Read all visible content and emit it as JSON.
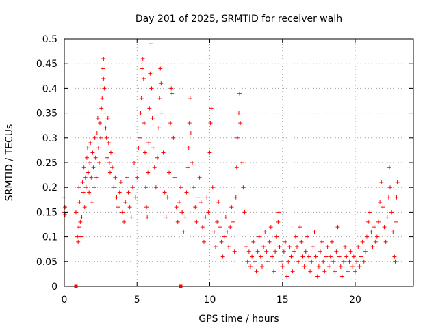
{
  "chart_data": {
    "type": "scatter",
    "title": "Day 201 of 2025, SRMTID for receiver walh",
    "xlabel": "GPS time / hours",
    "ylabel": "SRMTID / TECUs",
    "xlim": [
      0,
      24
    ],
    "ylim": [
      0,
      0.5
    ],
    "grid": true,
    "marker": "+",
    "marker_color": "#ff0000",
    "x_ticks": [
      0,
      5,
      10,
      15,
      20
    ],
    "x_tick_labels": [
      "0",
      "5",
      "10",
      "15",
      "20"
    ],
    "y_ticks": [
      0,
      0.05,
      0.1,
      0.15,
      0.2,
      0.25,
      0.3,
      0.35,
      0.4,
      0.45,
      0.5
    ],
    "y_tick_labels": [
      "0",
      "0.05",
      "0.1",
      "0.15",
      "0.2",
      "0.25",
      "0.3",
      "0.35",
      "0.4",
      "0.45",
      "0.5"
    ],
    "zero_markers": [
      0.8,
      8.0
    ],
    "series": [
      {
        "name": "SRMTID",
        "color": "#ff0000",
        "points": [
          [
            0.0,
            0.18
          ],
          [
            0.0,
            0.15
          ],
          [
            0.05,
            0.145
          ],
          [
            0.05,
            0.16
          ],
          [
            0.8,
            0.15
          ],
          [
            0.9,
            0.1
          ],
          [
            0.95,
            0.09
          ],
          [
            1.0,
            0.12
          ],
          [
            1.0,
            0.2
          ],
          [
            1.05,
            0.17
          ],
          [
            1.1,
            0.13
          ],
          [
            1.15,
            0.1
          ],
          [
            1.2,
            0.14
          ],
          [
            1.25,
            0.21
          ],
          [
            1.3,
            0.19
          ],
          [
            1.35,
            0.24
          ],
          [
            1.4,
            0.16
          ],
          [
            1.45,
            0.22
          ],
          [
            1.5,
            0.2
          ],
          [
            1.55,
            0.26
          ],
          [
            1.6,
            0.28
          ],
          [
            1.65,
            0.23
          ],
          [
            1.7,
            0.19
          ],
          [
            1.75,
            0.25
          ],
          [
            1.8,
            0.29
          ],
          [
            1.85,
            0.22
          ],
          [
            1.9,
            0.17
          ],
          [
            1.95,
            0.27
          ],
          [
            2.0,
            0.24
          ],
          [
            2.05,
            0.2
          ],
          [
            2.1,
            0.3
          ],
          [
            2.15,
            0.26
          ],
          [
            2.2,
            0.22
          ],
          [
            2.25,
            0.31
          ],
          [
            2.3,
            0.34
          ],
          [
            2.35,
            0.28
          ],
          [
            2.4,
            0.25
          ],
          [
            2.45,
            0.33
          ],
          [
            2.5,
            0.3
          ],
          [
            2.55,
            0.36
          ],
          [
            2.6,
            0.38
          ],
          [
            2.65,
            0.44
          ],
          [
            2.7,
            0.46
          ],
          [
            2.7,
            0.42
          ],
          [
            2.75,
            0.4
          ],
          [
            2.8,
            0.35
          ],
          [
            2.85,
            0.32
          ],
          [
            2.9,
            0.3
          ],
          [
            2.95,
            0.26
          ],
          [
            3.0,
            0.34
          ],
          [
            3.05,
            0.29
          ],
          [
            3.1,
            0.25
          ],
          [
            3.15,
            0.23
          ],
          [
            3.2,
            0.27
          ],
          [
            3.3,
            0.24
          ],
          [
            3.4,
            0.2
          ],
          [
            3.5,
            0.22
          ],
          [
            3.6,
            0.18
          ],
          [
            3.7,
            0.16
          ],
          [
            3.8,
            0.19
          ],
          [
            3.9,
            0.21
          ],
          [
            4.0,
            0.15
          ],
          [
            4.1,
            0.13
          ],
          [
            4.2,
            0.17
          ],
          [
            4.3,
            0.22
          ],
          [
            4.4,
            0.19
          ],
          [
            4.5,
            0.16
          ],
          [
            4.6,
            0.14
          ],
          [
            4.7,
            0.2
          ],
          [
            4.8,
            0.25
          ],
          [
            4.9,
            0.18
          ],
          [
            5.0,
            0.22
          ],
          [
            5.1,
            0.28
          ],
          [
            5.2,
            0.3
          ],
          [
            5.25,
            0.35
          ],
          [
            5.3,
            0.38
          ],
          [
            5.35,
            0.44
          ],
          [
            5.4,
            0.46
          ],
          [
            5.45,
            0.42
          ],
          [
            5.5,
            0.33
          ],
          [
            5.55,
            0.27
          ],
          [
            5.6,
            0.2
          ],
          [
            5.65,
            0.16
          ],
          [
            5.7,
            0.14
          ],
          [
            5.75,
            0.23
          ],
          [
            5.8,
            0.29
          ],
          [
            5.85,
            0.36
          ],
          [
            5.9,
            0.43
          ],
          [
            5.95,
            0.49
          ],
          [
            6.0,
            0.4
          ],
          [
            6.05,
            0.34
          ],
          [
            6.1,
            0.28
          ],
          [
            6.2,
            0.24
          ],
          [
            6.3,
            0.2
          ],
          [
            6.4,
            0.26
          ],
          [
            6.5,
            0.32
          ],
          [
            6.55,
            0.38
          ],
          [
            6.6,
            0.44
          ],
          [
            6.65,
            0.41
          ],
          [
            6.7,
            0.35
          ],
          [
            6.8,
            0.27
          ],
          [
            6.9,
            0.19
          ],
          [
            7.0,
            0.14
          ],
          [
            7.1,
            0.18
          ],
          [
            7.2,
            0.23
          ],
          [
            7.3,
            0.33
          ],
          [
            7.35,
            0.4
          ],
          [
            7.4,
            0.39
          ],
          [
            7.5,
            0.3
          ],
          [
            7.6,
            0.22
          ],
          [
            7.7,
            0.16
          ],
          [
            7.8,
            0.13
          ],
          [
            7.9,
            0.17
          ],
          [
            8.0,
            0.2
          ],
          [
            8.1,
            0.15
          ],
          [
            8.2,
            0.11
          ],
          [
            8.3,
            0.14
          ],
          [
            8.4,
            0.19
          ],
          [
            8.5,
            0.24
          ],
          [
            8.55,
            0.28
          ],
          [
            8.6,
            0.33
          ],
          [
            8.65,
            0.38
          ],
          [
            8.7,
            0.31
          ],
          [
            8.8,
            0.25
          ],
          [
            8.9,
            0.2
          ],
          [
            9.0,
            0.16
          ],
          [
            9.1,
            0.13
          ],
          [
            9.2,
            0.18
          ],
          [
            9.3,
            0.22
          ],
          [
            9.4,
            0.17
          ],
          [
            9.5,
            0.12
          ],
          [
            9.6,
            0.09
          ],
          [
            9.7,
            0.14
          ],
          [
            9.8,
            0.18
          ],
          [
            9.9,
            0.15
          ],
          [
            10.0,
            0.27
          ],
          [
            10.05,
            0.33
          ],
          [
            10.1,
            0.36
          ],
          [
            10.2,
            0.2
          ],
          [
            10.3,
            0.11
          ],
          [
            10.4,
            0.08
          ],
          [
            10.5,
            0.13
          ],
          [
            10.6,
            0.17
          ],
          [
            10.7,
            0.12
          ],
          [
            10.8,
            0.09
          ],
          [
            10.9,
            0.06
          ],
          [
            11.0,
            0.1
          ],
          [
            11.1,
            0.14
          ],
          [
            11.2,
            0.11
          ],
          [
            11.3,
            0.08
          ],
          [
            11.4,
            0.12
          ],
          [
            11.5,
            0.16
          ],
          [
            11.6,
            0.13
          ],
          [
            11.7,
            0.07
          ],
          [
            11.8,
            0.18
          ],
          [
            11.85,
            0.24
          ],
          [
            11.9,
            0.3
          ],
          [
            12.0,
            0.35
          ],
          [
            12.05,
            0.39
          ],
          [
            12.1,
            0.33
          ],
          [
            12.2,
            0.25
          ],
          [
            12.3,
            0.2
          ],
          [
            12.4,
            0.15
          ],
          [
            12.5,
            0.08
          ],
          [
            12.6,
            0.05
          ],
          [
            12.7,
            0.07
          ],
          [
            12.8,
            0.04
          ],
          [
            12.9,
            0.06
          ],
          [
            13.0,
            0.09
          ],
          [
            13.1,
            0.05
          ],
          [
            13.2,
            0.03
          ],
          [
            13.3,
            0.07
          ],
          [
            13.4,
            0.1
          ],
          [
            13.5,
            0.06
          ],
          [
            13.6,
            0.04
          ],
          [
            13.7,
            0.08
          ],
          [
            13.8,
            0.11
          ],
          [
            13.9,
            0.07
          ],
          [
            14.0,
            0.05
          ],
          [
            14.1,
            0.09
          ],
          [
            14.2,
            0.12
          ],
          [
            14.3,
            0.06
          ],
          [
            14.4,
            0.03
          ],
          [
            14.5,
            0.07
          ],
          [
            14.6,
            0.1
          ],
          [
            14.7,
            0.13
          ],
          [
            14.75,
            0.15
          ],
          [
            14.8,
            0.08
          ],
          [
            14.9,
            0.05
          ],
          [
            15.0,
            0.04
          ],
          [
            15.1,
            0.07
          ],
          [
            15.2,
            0.09
          ],
          [
            15.3,
            0.02
          ],
          [
            15.4,
            0.05
          ],
          [
            15.5,
            0.08
          ],
          [
            15.6,
            0.06
          ],
          [
            15.7,
            0.03
          ],
          [
            15.8,
            0.07
          ],
          [
            15.9,
            0.1
          ],
          [
            16.0,
            0.08
          ],
          [
            16.1,
            0.05
          ],
          [
            16.2,
            0.12
          ],
          [
            16.3,
            0.09
          ],
          [
            16.4,
            0.06
          ],
          [
            16.5,
            0.04
          ],
          [
            16.6,
            0.07
          ],
          [
            16.7,
            0.1
          ],
          [
            16.8,
            0.06
          ],
          [
            16.9,
            0.03
          ],
          [
            17.0,
            0.05
          ],
          [
            17.1,
            0.08
          ],
          [
            17.2,
            0.11
          ],
          [
            17.3,
            0.06
          ],
          [
            17.4,
            0.02
          ],
          [
            17.5,
            0.04
          ],
          [
            17.6,
            0.07
          ],
          [
            17.7,
            0.09
          ],
          [
            17.8,
            0.05
          ],
          [
            17.9,
            0.03
          ],
          [
            18.0,
            0.06
          ],
          [
            18.1,
            0.08
          ],
          [
            18.2,
            0.04
          ],
          [
            18.3,
            0.06
          ],
          [
            18.4,
            0.09
          ],
          [
            18.5,
            0.05
          ],
          [
            18.6,
            0.03
          ],
          [
            18.7,
            0.07
          ],
          [
            18.8,
            0.12
          ],
          [
            18.9,
            0.06
          ],
          [
            19.0,
            0.04
          ],
          [
            19.1,
            0.02
          ],
          [
            19.2,
            0.05
          ],
          [
            19.3,
            0.08
          ],
          [
            19.4,
            0.06
          ],
          [
            19.5,
            0.03
          ],
          [
            19.6,
            0.05
          ],
          [
            19.7,
            0.07
          ],
          [
            19.8,
            0.04
          ],
          [
            19.9,
            0.06
          ],
          [
            20.0,
            0.03
          ],
          [
            20.1,
            0.05
          ],
          [
            20.2,
            0.08
          ],
          [
            20.3,
            0.04
          ],
          [
            20.4,
            0.06
          ],
          [
            20.5,
            0.09
          ],
          [
            20.6,
            0.05
          ],
          [
            20.7,
            0.07
          ],
          [
            20.8,
            0.1
          ],
          [
            20.9,
            0.13
          ],
          [
            21.0,
            0.15
          ],
          [
            21.1,
            0.11
          ],
          [
            21.2,
            0.08
          ],
          [
            21.3,
            0.12
          ],
          [
            21.4,
            0.09
          ],
          [
            21.5,
            0.1
          ],
          [
            21.6,
            0.13
          ],
          [
            21.7,
            0.17
          ],
          [
            21.8,
            0.21
          ],
          [
            21.9,
            0.16
          ],
          [
            22.0,
            0.12
          ],
          [
            22.1,
            0.09
          ],
          [
            22.2,
            0.14
          ],
          [
            22.3,
            0.18
          ],
          [
            22.35,
            0.24
          ],
          [
            22.4,
            0.2
          ],
          [
            22.5,
            0.15
          ],
          [
            22.6,
            0.11
          ],
          [
            22.7,
            0.06
          ],
          [
            22.75,
            0.05
          ],
          [
            22.8,
            0.13
          ],
          [
            22.85,
            0.18
          ],
          [
            22.9,
            0.21
          ]
        ]
      }
    ]
  }
}
